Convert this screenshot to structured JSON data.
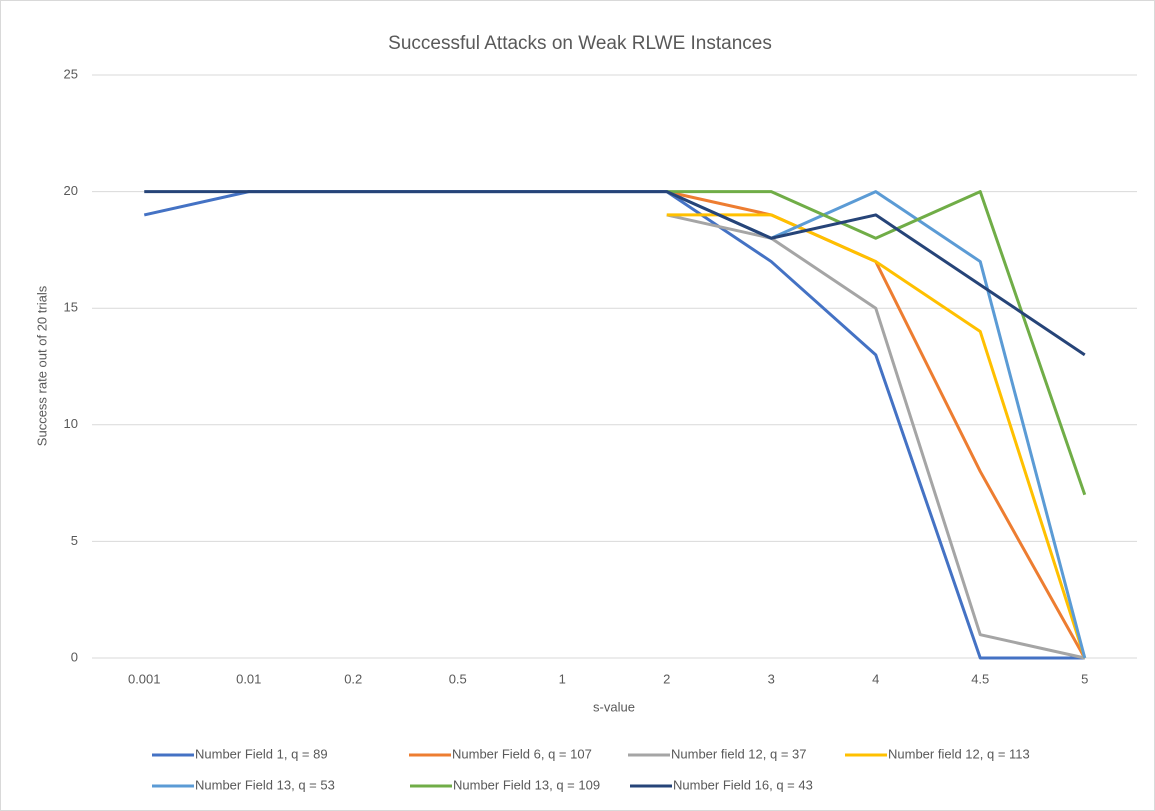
{
  "chart_data": {
    "type": "line",
    "title": "Successful Attacks on Weak RLWE Instances",
    "x_label": "s-value",
    "y_label": "Success rate out of 20 trials",
    "categories": [
      "0.001",
      "0.01",
      "0.2",
      "0.5",
      "1",
      "2",
      "3",
      "4",
      "4.5",
      "5"
    ],
    "series": [
      {
        "name": "Number Field 1, q = 89",
        "color": "#4472c4",
        "values": [
          19,
          20,
          20,
          20,
          20,
          20,
          17,
          13,
          0,
          0
        ]
      },
      {
        "name": "Number Field 6, q = 107",
        "color": "#ed7d31",
        "values": [
          null,
          null,
          null,
          null,
          null,
          20,
          19,
          17,
          8,
          0
        ]
      },
      {
        "name": "Number field 12, q = 37",
        "color": "#a5a5a5",
        "values": [
          null,
          null,
          null,
          null,
          null,
          19,
          18,
          15,
          1,
          0
        ]
      },
      {
        "name": "Number field 12, q = 113",
        "color": "#ffc000",
        "values": [
          null,
          null,
          null,
          null,
          null,
          19,
          19,
          17,
          14,
          0
        ]
      },
      {
        "name": "Number Field 13, q = 53",
        "color": "#5b9bd5",
        "values": [
          null,
          null,
          null,
          null,
          null,
          20,
          18,
          20,
          17,
          0
        ]
      },
      {
        "name": "Number Field 13, q = 109",
        "color": "#70ad47",
        "values": [
          null,
          null,
          null,
          null,
          null,
          20,
          20,
          18,
          20,
          7
        ]
      },
      {
        "name": "Number Field 16, q = 43",
        "color": "#264478",
        "values": [
          20,
          20,
          20,
          20,
          20,
          20,
          18,
          19,
          16,
          13
        ]
      }
    ],
    "ylim": [
      0,
      25
    ],
    "yticks": [
      0,
      5,
      10,
      15,
      20,
      25
    ],
    "grid": true
  }
}
